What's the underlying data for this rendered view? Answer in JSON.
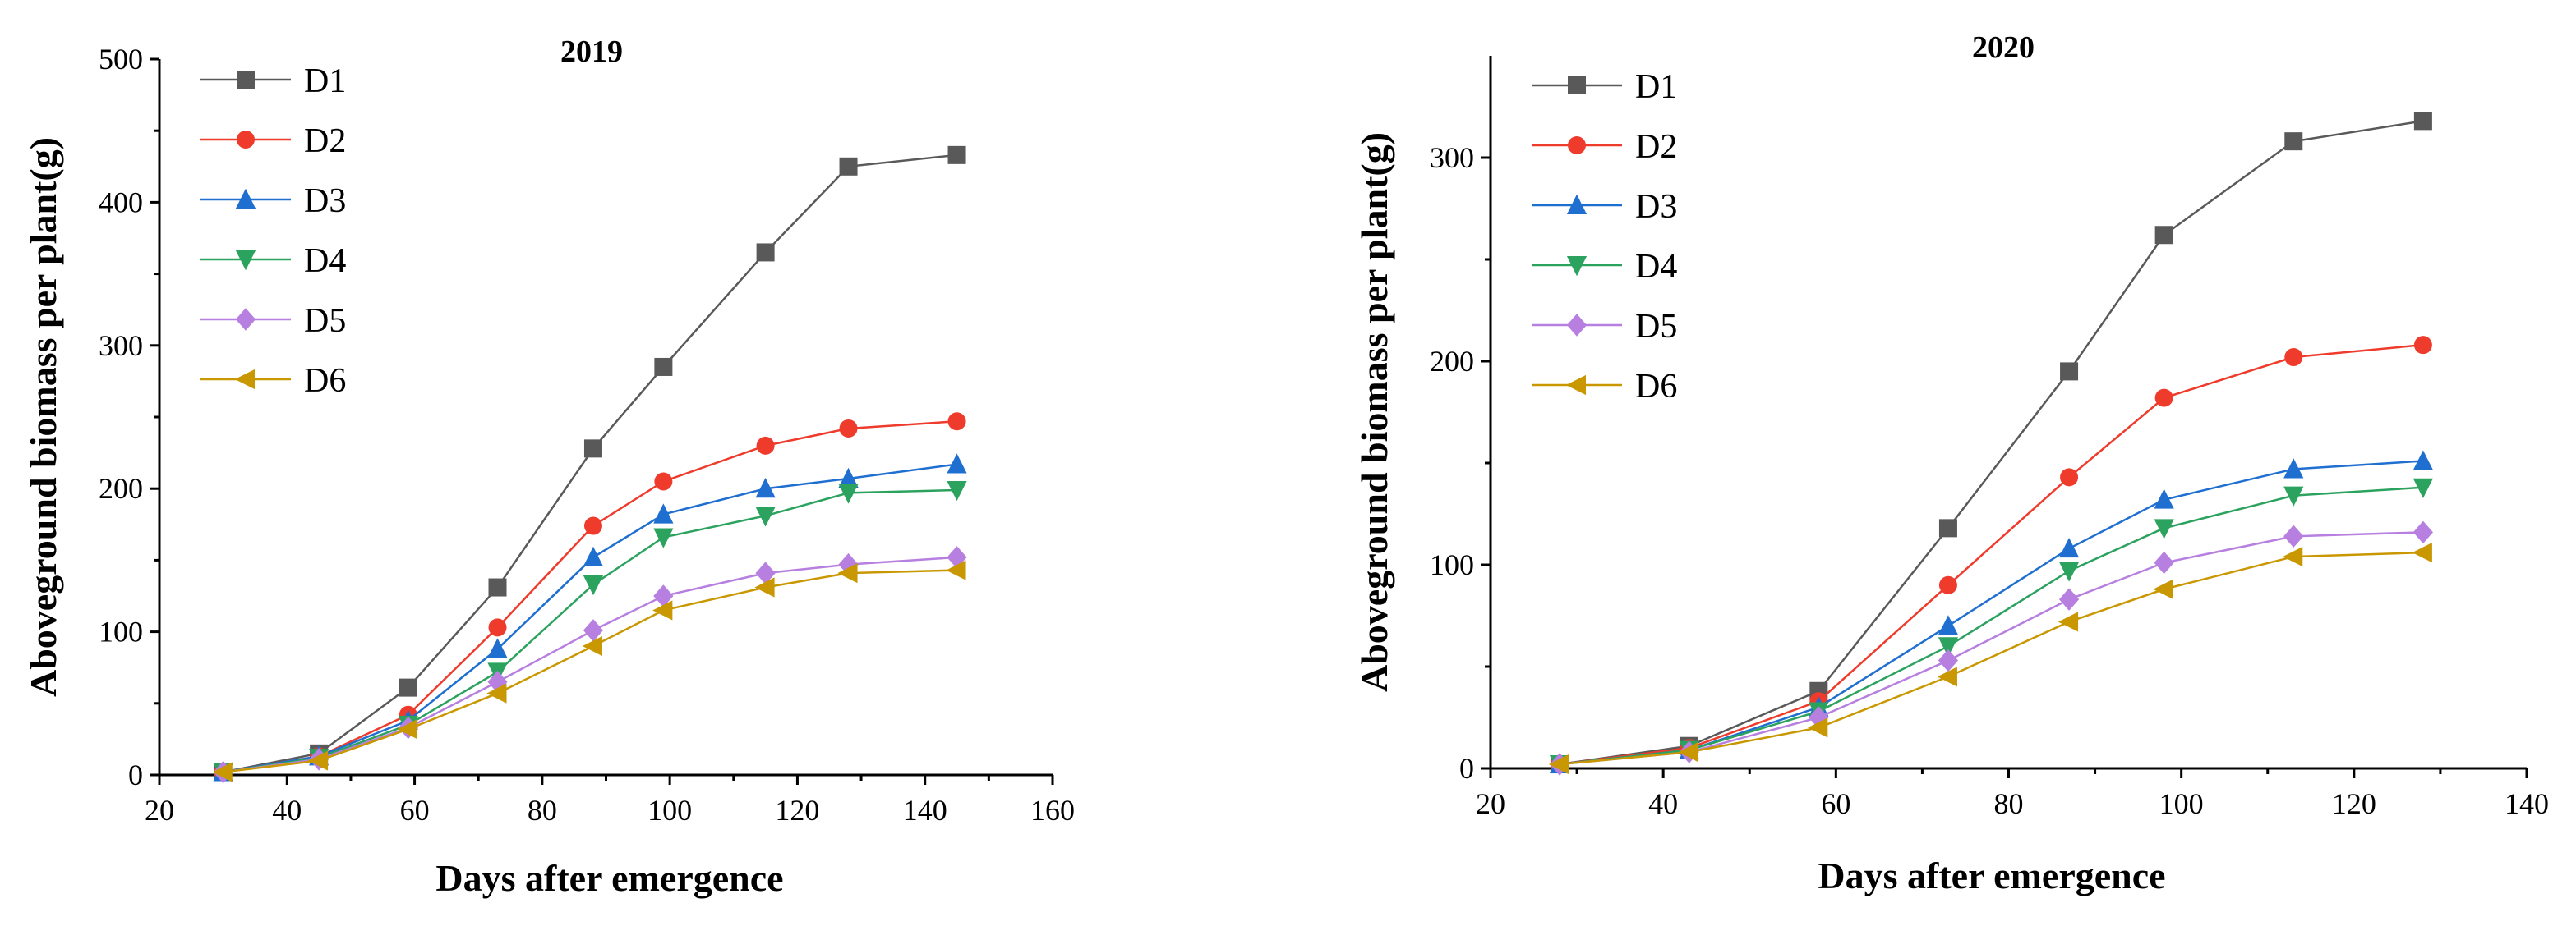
{
  "chart_data": [
    {
      "type": "line",
      "title": "2019",
      "xlabel": "Days after emergence",
      "ylabel": "Aboveground biomass per plant(g)",
      "xlim": [
        20,
        160
      ],
      "ylim": [
        0,
        500
      ],
      "xticks": [
        20,
        40,
        60,
        80,
        100,
        120,
        140,
        160
      ],
      "yticks": [
        0,
        100,
        200,
        300,
        400,
        500
      ],
      "x": [
        30,
        45,
        59,
        73,
        88,
        99,
        115,
        128,
        145
      ],
      "legend_position": "top-left",
      "series": [
        {
          "name": "D1",
          "color": "#595959",
          "marker": "square",
          "values": [
            2,
            15,
            61,
            131,
            228,
            285,
            365,
            425,
            433
          ]
        },
        {
          "name": "D2",
          "color": "#ef3b2c",
          "marker": "circle",
          "values": [
            2,
            13,
            42,
            103,
            174,
            205,
            230,
            242,
            247
          ]
        },
        {
          "name": "D3",
          "color": "#1f6fd1",
          "marker": "triangle-up",
          "values": [
            2,
            13,
            38,
            88,
            152,
            182,
            200,
            207,
            217
          ]
        },
        {
          "name": "D4",
          "color": "#2ca25f",
          "marker": "triangle-down",
          "values": [
            2,
            12,
            35,
            72,
            133,
            166,
            181,
            197,
            199
          ]
        },
        {
          "name": "D5",
          "color": "#b77fe0",
          "marker": "diamond",
          "values": [
            2,
            11,
            33,
            65,
            101,
            125,
            141,
            147,
            152
          ]
        },
        {
          "name": "D6",
          "color": "#c99700",
          "marker": "triangle-left",
          "values": [
            2,
            10,
            32,
            57,
            90,
            115,
            131,
            141,
            143
          ]
        }
      ]
    },
    {
      "type": "line",
      "title": "2020",
      "xlabel": "Days after emergence",
      "ylabel": "Aboveground biomass per plant(g)",
      "xlim": [
        20,
        140
      ],
      "ylim": [
        0,
        350
      ],
      "xticks": [
        20,
        40,
        60,
        80,
        100,
        120,
        140
      ],
      "yticks": [
        0,
        100,
        200,
        300
      ],
      "x": [
        28,
        43,
        58,
        73,
        87,
        98,
        113,
        128
      ],
      "legend_position": "top-left",
      "series": [
        {
          "name": "D1",
          "color": "#595959",
          "marker": "square",
          "values": [
            2,
            11,
            38,
            118,
            195,
            262,
            308,
            318
          ]
        },
        {
          "name": "D2",
          "color": "#ef3b2c",
          "marker": "circle",
          "values": [
            2,
            10,
            33,
            90,
            143,
            182,
            202,
            208
          ]
        },
        {
          "name": "D3",
          "color": "#1f6fd1",
          "marker": "triangle-up",
          "values": [
            2,
            9,
            30,
            70,
            108,
            132,
            147,
            151
          ]
        },
        {
          "name": "D4",
          "color": "#2ca25f",
          "marker": "triangle-down",
          "values": [
            2,
            9,
            28,
            60,
            97,
            118,
            134,
            138
          ]
        },
        {
          "name": "D5",
          "color": "#b77fe0",
          "marker": "diamond",
          "values": [
            2,
            8,
            25,
            53,
            83,
            101,
            114,
            116
          ]
        },
        {
          "name": "D6",
          "color": "#c99700",
          "marker": "triangle-left",
          "values": [
            2,
            8,
            20,
            45,
            72,
            88,
            104,
            106
          ]
        }
      ]
    }
  ]
}
